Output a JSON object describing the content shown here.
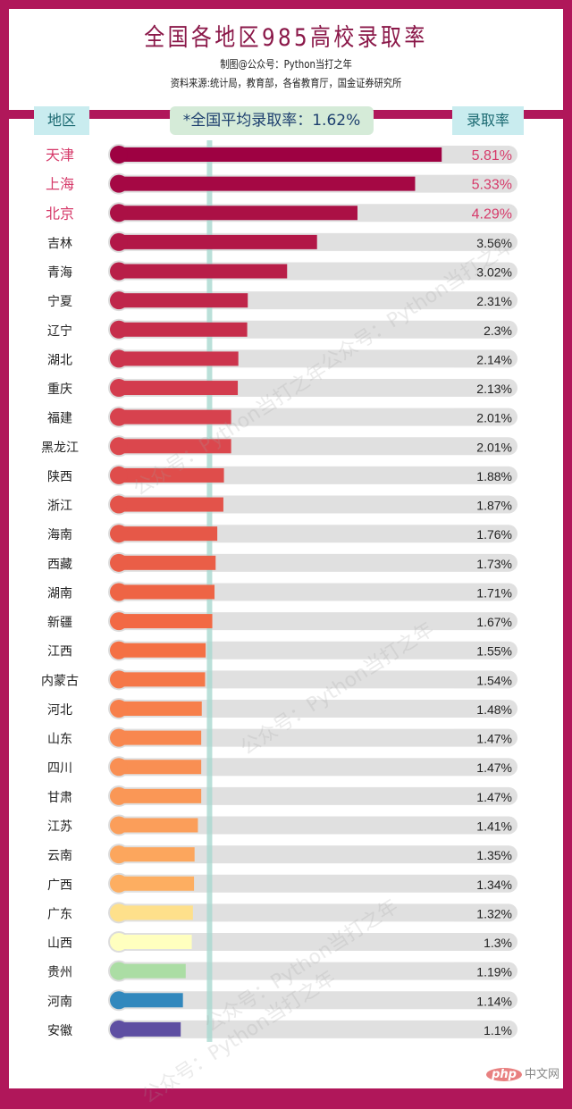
{
  "header": {
    "title": "全国各地区985高校录取率",
    "credit": "制图@公众号：Python当打之年",
    "source": "资料来源:统计局，教育部，各省教育厅，国金证券研究所"
  },
  "columns": {
    "region": "地区",
    "rate": "录取率"
  },
  "average_label": "*全国平均录取率：1.62%",
  "watermark": "公众号：Python当打之年",
  "site_logo": {
    "mark": "php",
    "text": "中文网"
  },
  "chart_data": {
    "type": "bar",
    "orientation": "horizontal",
    "categories": [
      "天津",
      "上海",
      "北京",
      "吉林",
      "青海",
      "宁夏",
      "辽宁",
      "湖北",
      "重庆",
      "福建",
      "黑龙江",
      "陕西",
      "浙江",
      "海南",
      "西藏",
      "湖南",
      "新疆",
      "江西",
      "内蒙古",
      "河北",
      "山东",
      "四川",
      "甘肃",
      "江苏",
      "云南",
      "广西",
      "广东",
      "山西",
      "贵州",
      "河南",
      "安徽"
    ],
    "values": [
      5.81,
      5.33,
      4.29,
      3.56,
      3.02,
      2.31,
      2.3,
      2.14,
      2.13,
      2.01,
      2.01,
      1.88,
      1.87,
      1.76,
      1.73,
      1.71,
      1.67,
      1.55,
      1.54,
      1.48,
      1.47,
      1.47,
      1.47,
      1.41,
      1.35,
      1.34,
      1.32,
      1.3,
      1.19,
      1.14,
      1.1
    ],
    "value_labels": [
      "5.81%",
      "5.33%",
      "4.29%",
      "3.56%",
      "3.02%",
      "2.31%",
      "2.3%",
      "2.14%",
      "2.13%",
      "2.01%",
      "2.01%",
      "1.88%",
      "1.87%",
      "1.76%",
      "1.73%",
      "1.71%",
      "1.67%",
      "1.55%",
      "1.54%",
      "1.48%",
      "1.47%",
      "1.47%",
      "1.47%",
      "1.41%",
      "1.35%",
      "1.34%",
      "1.32%",
      "1.3%",
      "1.19%",
      "1.14%",
      "1.1%"
    ],
    "unit": "%",
    "average": 1.62,
    "xlim": [
      0,
      6
    ],
    "highlight_top": 3,
    "highlight_color": "#d63a6a",
    "palette": [
      "#9e0142",
      "#d53e4f",
      "#f46d43",
      "#fdae61",
      "#fee08b",
      "#ffffbf",
      "#abdda4",
      "#3288bd",
      "#5e4fa2"
    ],
    "track_color": "#e0e0e0",
    "average_line_color": "#a9d8d0",
    "frame_color": "#b0175a"
  }
}
